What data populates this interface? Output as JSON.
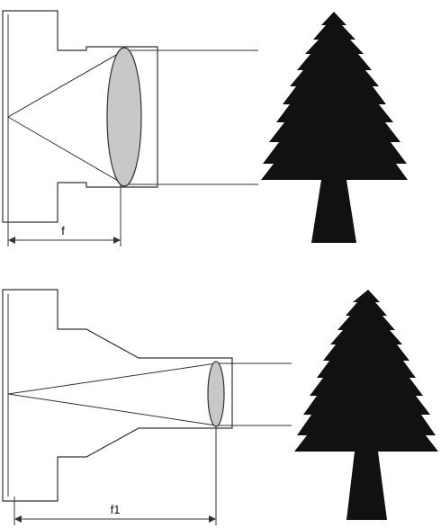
{
  "diagram": {
    "panels": [
      {
        "focal_label": "f"
      },
      {
        "focal_label": "f1"
      }
    ],
    "colors": {
      "line": "#333333",
      "lens_fill": "#c8c8c8",
      "tree": "#111111",
      "background": "#ffffff"
    },
    "icons": [
      "camera-body-outline",
      "lens-element",
      "tree-icon",
      "dimension-arrow"
    ]
  }
}
